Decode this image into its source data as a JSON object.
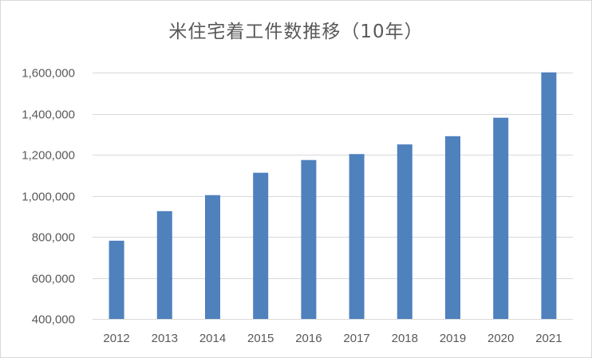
{
  "chart_data": {
    "type": "bar",
    "title": "米住宅着工件数推移（10年）",
    "xlabel": "",
    "ylabel": "",
    "categories": [
      "2012",
      "2013",
      "2014",
      "2015",
      "2016",
      "2017",
      "2018",
      "2019",
      "2020",
      "2021"
    ],
    "values": [
      781000,
      925000,
      1003000,
      1112000,
      1174000,
      1203000,
      1250000,
      1290000,
      1380000,
      1601000
    ],
    "ylim": [
      400000,
      1600000
    ],
    "yticks": [
      400000,
      600000,
      800000,
      1000000,
      1200000,
      1400000,
      1600000
    ],
    "ytick_labels": [
      "400,000",
      "600,000",
      "800,000",
      "1,000,000",
      "1,200,000",
      "1,400,000",
      "1,600,000"
    ],
    "grid": true,
    "legend": "none",
    "colors": {
      "bar": "#4f81bd",
      "grid": "#d9d9d9",
      "text": "#595959"
    }
  }
}
